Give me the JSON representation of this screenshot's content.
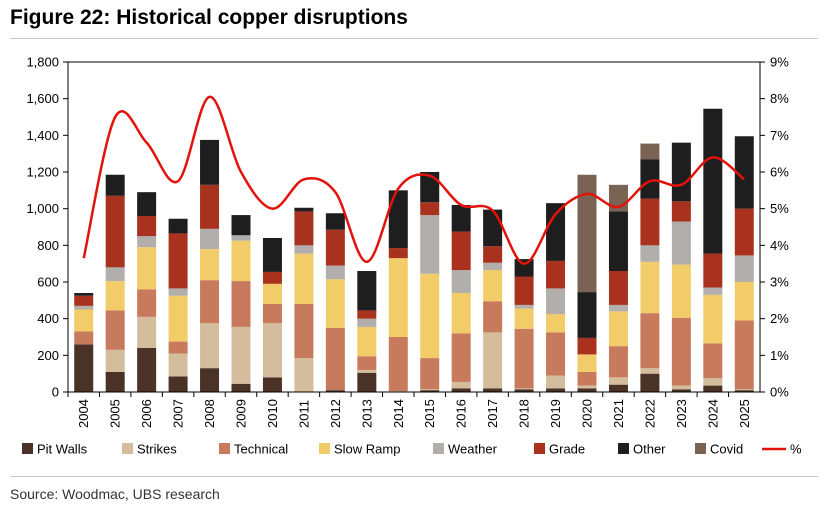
{
  "title": "Figure 22: Historical copper disruptions",
  "source": "Source: Woodmac, UBS research",
  "chart_data": {
    "type": "bar",
    "stacked": true,
    "categories": [
      "2004",
      "2005",
      "2006",
      "2007",
      "2008",
      "2009",
      "2010",
      "2011",
      "2012",
      "2013",
      "2014",
      "2015",
      "2016",
      "2017",
      "2018",
      "2019",
      "2020",
      "2021",
      "2022",
      "2023",
      "2024",
      "2025"
    ],
    "left_axis": {
      "min": 0,
      "max": 1800,
      "step": 200,
      "tick_labels": [
        "0",
        "200",
        "400",
        "600",
        "800",
        "1,000",
        "1,200",
        "1,400",
        "1,600",
        "1,800"
      ]
    },
    "right_axis": {
      "min": 0,
      "max": 9,
      "step": 1,
      "tick_labels": [
        "0%",
        "1%",
        "2%",
        "3%",
        "4%",
        "5%",
        "6%",
        "7%",
        "8%",
        "9%"
      ]
    },
    "series": [
      {
        "name": "Pit Walls",
        "color": "#4a3326",
        "values": [
          260,
          110,
          240,
          85,
          130,
          45,
          80,
          0,
          10,
          105,
          0,
          10,
          20,
          20,
          15,
          20,
          20,
          40,
          100,
          15,
          35,
          10
        ]
      },
      {
        "name": "Strikes",
        "color": "#d4bd9d",
        "values": [
          0,
          120,
          170,
          125,
          245,
          310,
          295,
          185,
          0,
          15,
          5,
          5,
          35,
          305,
          5,
          70,
          15,
          40,
          30,
          20,
          40,
          5
        ]
      },
      {
        "name": "Technical",
        "color": "#c87a5c",
        "values": [
          70,
          215,
          150,
          65,
          235,
          250,
          105,
          295,
          340,
          75,
          295,
          170,
          265,
          170,
          325,
          235,
          75,
          170,
          300,
          370,
          190,
          375
        ]
      },
      {
        "name": "Slow Ramp",
        "color": "#f1cc69",
        "values": [
          120,
          160,
          230,
          250,
          170,
          220,
          110,
          275,
          265,
          160,
          430,
          460,
          220,
          170,
          110,
          100,
          95,
          190,
          280,
          290,
          265,
          210
        ]
      },
      {
        "name": "Weather",
        "color": "#b1aeab",
        "values": [
          20,
          75,
          60,
          40,
          110,
          30,
          0,
          45,
          75,
          45,
          0,
          320,
          125,
          40,
          20,
          140,
          0,
          35,
          90,
          235,
          40,
          145
        ]
      },
      {
        "name": "Grade",
        "color": "#a8321e",
        "values": [
          55,
          390,
          110,
          300,
          240,
          0,
          65,
          185,
          195,
          45,
          55,
          70,
          210,
          90,
          155,
          150,
          90,
          185,
          255,
          110,
          185,
          255
        ]
      },
      {
        "name": "Other",
        "color": "#1e1e1e",
        "values": [
          15,
          115,
          130,
          80,
          245,
          110,
          185,
          20,
          90,
          215,
          315,
          165,
          145,
          200,
          95,
          315,
          250,
          325,
          215,
          320,
          790,
          395
        ]
      },
      {
        "name": "Covid",
        "color": "#7a6352",
        "values": [
          0,
          0,
          0,
          0,
          0,
          0,
          0,
          0,
          0,
          0,
          0,
          0,
          0,
          0,
          0,
          0,
          640,
          145,
          85,
          0,
          0,
          0
        ]
      }
    ],
    "line": {
      "name": "%",
      "color": "#e3120b",
      "axis": "right",
      "values": [
        3.65,
        7.5,
        6.8,
        5.75,
        8.05,
        6.0,
        5.0,
        5.8,
        5.45,
        3.55,
        5.55,
        5.9,
        5.1,
        4.95,
        3.5,
        4.85,
        5.4,
        5.05,
        5.75,
        5.65,
        6.4,
        5.8
      ]
    },
    "legend_position": "bottom"
  }
}
